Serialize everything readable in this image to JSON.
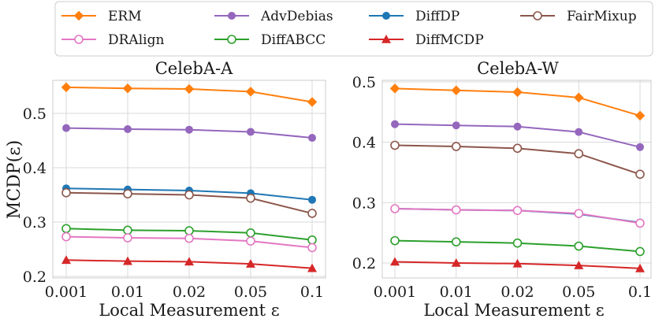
{
  "legend": {
    "entries": [
      {
        "label": "ERM",
        "color": "#ff7f0e",
        "marker": "diamond"
      },
      {
        "label": "AdvDebias",
        "color": "#9467bd",
        "marker": "circle"
      },
      {
        "label": "DiffDP",
        "color": "#1f77b4",
        "marker": "circle"
      },
      {
        "label": "FairMixup",
        "color": "#8c564b",
        "marker": "circle-open"
      },
      {
        "label": "DRAlign",
        "color": "#e377c2",
        "marker": "circle-open"
      },
      {
        "label": "DiffABCC",
        "color": "#2ca02c",
        "marker": "circle-open"
      },
      {
        "label": "DiffMCDP",
        "color": "#d62728",
        "marker": "triangle"
      }
    ]
  },
  "chart_data": [
    {
      "type": "line",
      "title": "CelebA-A",
      "xlabel": "Local Measurement ε",
      "ylabel": "MCDP(ε)",
      "categories": [
        "0.001",
        "0.01",
        "0.02",
        "0.05",
        "0.1"
      ],
      "ylim": [
        0.2,
        0.56
      ],
      "yticks": [
        0.2,
        0.3,
        0.4,
        0.5
      ],
      "ytick_labels": [
        "0.2",
        "0.3",
        "0.4",
        "0.5"
      ],
      "grid": true,
      "series": [
        {
          "name": "ERM",
          "values": [
            0.548,
            0.546,
            0.545,
            0.54,
            0.521
          ]
        },
        {
          "name": "AdvDebias",
          "values": [
            0.473,
            0.471,
            0.47,
            0.466,
            0.455
          ]
        },
        {
          "name": "DiffDP",
          "values": [
            0.362,
            0.36,
            0.358,
            0.353,
            0.341
          ]
        },
        {
          "name": "FairMixup",
          "values": [
            0.354,
            0.352,
            0.35,
            0.344,
            0.316
          ]
        },
        {
          "name": "DiffABCC",
          "values": [
            0.288,
            0.285,
            0.284,
            0.28,
            0.267
          ]
        },
        {
          "name": "DRAlign",
          "values": [
            0.273,
            0.271,
            0.27,
            0.265,
            0.253
          ]
        },
        {
          "name": "DiffMCDP",
          "values": [
            0.23,
            0.228,
            0.227,
            0.223,
            0.215
          ]
        }
      ]
    },
    {
      "type": "line",
      "title": "CelebA-W",
      "xlabel": "Local Measurement ε",
      "ylabel": "",
      "categories": [
        "0.001",
        "0.01",
        "0.02",
        "0.05",
        "0.1"
      ],
      "ylim": [
        0.18,
        0.5
      ],
      "yticks": [
        0.2,
        0.3,
        0.4,
        0.5
      ],
      "ytick_labels": [
        "0.2",
        "0.3",
        "0.4",
        "0.5"
      ],
      "grid": true,
      "series": [
        {
          "name": "ERM",
          "values": [
            0.489,
            0.486,
            0.483,
            0.474,
            0.444
          ]
        },
        {
          "name": "AdvDebias",
          "values": [
            0.43,
            0.428,
            0.426,
            0.417,
            0.392
          ]
        },
        {
          "name": "FairMixup",
          "values": [
            0.395,
            0.393,
            0.39,
            0.381,
            0.347
          ]
        },
        {
          "name": "DiffDP",
          "values": [
            0.29,
            0.288,
            0.287,
            0.281,
            0.267
          ]
        },
        {
          "name": "DRAlign",
          "values": [
            0.29,
            0.288,
            0.287,
            0.282,
            0.266
          ]
        },
        {
          "name": "DiffABCC",
          "values": [
            0.237,
            0.235,
            0.233,
            0.228,
            0.219
          ]
        },
        {
          "name": "DiffMCDP",
          "values": [
            0.202,
            0.2,
            0.199,
            0.196,
            0.191
          ]
        }
      ]
    }
  ]
}
